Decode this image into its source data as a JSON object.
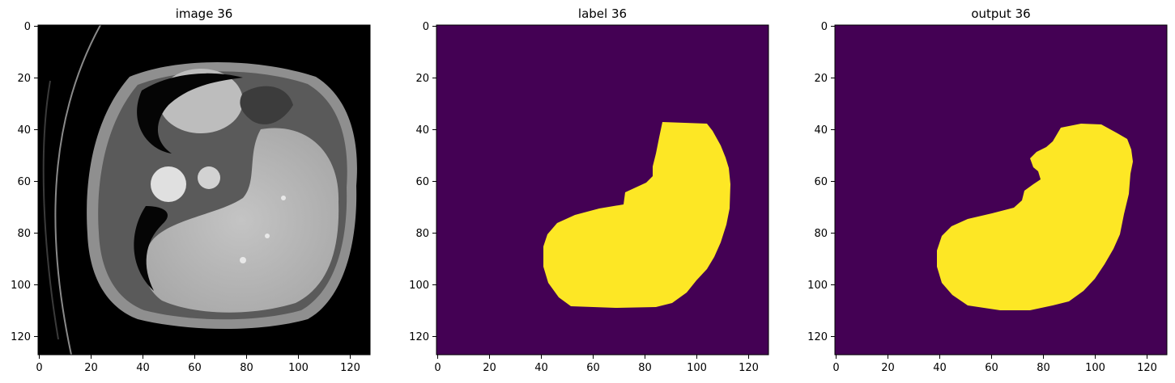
{
  "figure": {
    "panels": [
      {
        "id": "image",
        "title": "image 36",
        "kind": "ct-slice",
        "x_ticks": [
          "0",
          "20",
          "40",
          "60",
          "80",
          "100",
          "120"
        ],
        "y_ticks": [
          "0",
          "20",
          "40",
          "60",
          "80",
          "100",
          "120"
        ],
        "x_range": [
          0,
          128
        ],
        "y_range": [
          0,
          128
        ]
      },
      {
        "id": "label",
        "title": "label 36",
        "kind": "segmentation-mask",
        "background_color": "#440154",
        "mask_color": "#fde725",
        "x_ticks": [
          "0",
          "20",
          "40",
          "60",
          "80",
          "100",
          "120"
        ],
        "y_ticks": [
          "0",
          "20",
          "40",
          "60",
          "80",
          "100",
          "120"
        ],
        "x_range": [
          0,
          128
        ],
        "y_range": [
          0,
          128
        ]
      },
      {
        "id": "output",
        "title": "output 36",
        "kind": "segmentation-mask",
        "background_color": "#440154",
        "mask_color": "#fde725",
        "x_ticks": [
          "0",
          "20",
          "40",
          "60",
          "80",
          "100",
          "120"
        ],
        "y_ticks": [
          "0",
          "20",
          "40",
          "60",
          "80",
          "100",
          "120"
        ],
        "x_range": [
          0,
          128
        ],
        "y_range": [
          0,
          128
        ]
      }
    ]
  }
}
